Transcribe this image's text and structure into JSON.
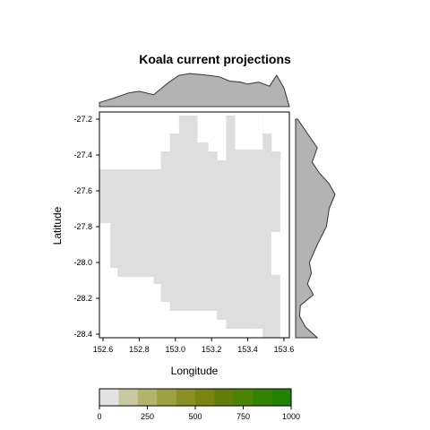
{
  "chart_data": {
    "type": "heatmap",
    "title": "Koala current projections",
    "xlabel": "Longitude",
    "ylabel": "Latitude",
    "xlim": [
      152.58,
      153.63
    ],
    "ylim": [
      -28.42,
      -27.16
    ],
    "x_ticks": [
      152.6,
      152.8,
      153.0,
      153.2,
      153.4,
      153.6
    ],
    "x_tick_labels": [
      "152.6",
      "152.8",
      "153.0",
      "153.2",
      "153.4",
      "153.6"
    ],
    "y_ticks": [
      -27.2,
      -27.4,
      -27.6,
      -27.8,
      -28.0,
      -28.2,
      -28.4
    ],
    "y_tick_labels": [
      "-27.2",
      "-27.4",
      "-27.6",
      "-27.8",
      "-28.0",
      "-28.2",
      "-28.4"
    ],
    "grid": false,
    "cell_value_all": 0,
    "cell_color": "#dedede",
    "region": {
      "columns": [
        {
          "x0": 152.58,
          "x1": 152.64,
          "ymin": -27.78,
          "ymax": -27.48
        },
        {
          "x0": 152.64,
          "x1": 152.68,
          "ymin": -28.03,
          "ymax": -27.48
        },
        {
          "x0": 152.68,
          "x1": 152.88,
          "ymin": -28.08,
          "ymax": -27.48
        },
        {
          "x0": 152.88,
          "x1": 152.92,
          "ymin": -28.12,
          "ymax": -27.48
        },
        {
          "x0": 152.92,
          "x1": 152.97,
          "ymin": -28.22,
          "ymax": -27.38
        },
        {
          "x0": 152.97,
          "x1": 153.02,
          "ymin": -28.27,
          "ymax": -27.28
        },
        {
          "x0": 153.02,
          "x1": 153.12,
          "ymin": -28.27,
          "ymax": -27.18
        },
        {
          "x0": 153.12,
          "x1": 153.18,
          "ymin": -28.27,
          "ymax": -27.33
        },
        {
          "x0": 153.18,
          "x1": 153.23,
          "ymin": -28.27,
          "ymax": -27.38
        },
        {
          "x0": 153.23,
          "x1": 153.28,
          "ymin": -28.32,
          "ymax": -27.43
        },
        {
          "x0": 153.28,
          "x1": 153.33,
          "ymin": -28.37,
          "ymax": -27.18
        },
        {
          "x0": 153.33,
          "x1": 153.38,
          "ymin": -28.37,
          "ymax": -27.28
        },
        {
          "x0": 153.38,
          "x1": 153.43,
          "ymin": -28.37,
          "ymax": -27.33
        },
        {
          "x0": 153.43,
          "x1": 153.48,
          "ymin": -28.42,
          "ymax": -27.18
        },
        {
          "x0": 153.48,
          "x1": 153.53,
          "ymin": -28.42,
          "ymax": -27.28
        },
        {
          "x0": 153.53,
          "x1": 153.58,
          "ymin": -28.42,
          "ymax": -27.38
        },
        {
          "x0": 153.58,
          "x1": 153.63,
          "ymin": -28.42,
          "ymax": -27.43
        }
      ],
      "holes": [
        {
          "x0": 153.33,
          "x1": 153.48,
          "ymin": -27.37,
          "ymax": -27.18
        },
        {
          "x0": 153.43,
          "x1": 153.48,
          "ymin": -28.42,
          "ymax": -28.37
        },
        {
          "x0": 153.53,
          "x1": 153.58,
          "ymin": -28.07,
          "ymax": -27.83
        },
        {
          "x0": 153.58,
          "x1": 153.63,
          "ymin": -28.42,
          "ymax": -27.62
        },
        {
          "x0": 153.58,
          "x1": 153.63,
          "ymin": -28.42,
          "ymax": -27.43
        }
      ]
    },
    "marginal_longitude": {
      "x": [
        152.58,
        152.66,
        152.74,
        152.8,
        152.88,
        152.96,
        153.02,
        153.08,
        153.16,
        153.24,
        153.3,
        153.36,
        153.4,
        153.46,
        153.52,
        153.56,
        153.6,
        153.63
      ],
      "density": [
        0.12,
        0.25,
        0.4,
        0.45,
        0.35,
        0.7,
        0.92,
        0.97,
        0.93,
        0.88,
        0.75,
        0.72,
        0.66,
        0.72,
        0.6,
        0.92,
        0.55,
        0.0
      ]
    },
    "marginal_latitude": {
      "y": [
        -27.2,
        -27.28,
        -27.36,
        -27.44,
        -27.5,
        -27.56,
        -27.62,
        -27.7,
        -27.8,
        -27.9,
        -28.0,
        -28.06,
        -28.12,
        -28.18,
        -28.24,
        -28.3,
        -28.36,
        -28.42
      ],
      "density": [
        0.05,
        0.3,
        0.55,
        0.42,
        0.6,
        0.85,
        1.0,
        0.85,
        0.78,
        0.55,
        0.35,
        0.4,
        0.3,
        0.45,
        0.12,
        0.1,
        0.25,
        0.55
      ]
    },
    "colorbar": {
      "breaks": [
        0,
        100,
        200,
        300,
        400,
        500,
        600,
        700,
        800,
        900,
        1000
      ],
      "colors": [
        "#e2e2e2",
        "#c8c9a0",
        "#b2b46e",
        "#9ea044",
        "#8c8f26",
        "#7a8510",
        "#627e08",
        "#4c8304",
        "#338202",
        "#1f8200"
      ],
      "tick_values": [
        0,
        250,
        500,
        750,
        1000
      ],
      "tick_labels": [
        "0",
        "250",
        "500",
        "750",
        "1000"
      ]
    },
    "colors": {
      "marginal_fill": "#b3b3b3",
      "marginal_stroke": "#333333",
      "frame": "#000000"
    }
  }
}
